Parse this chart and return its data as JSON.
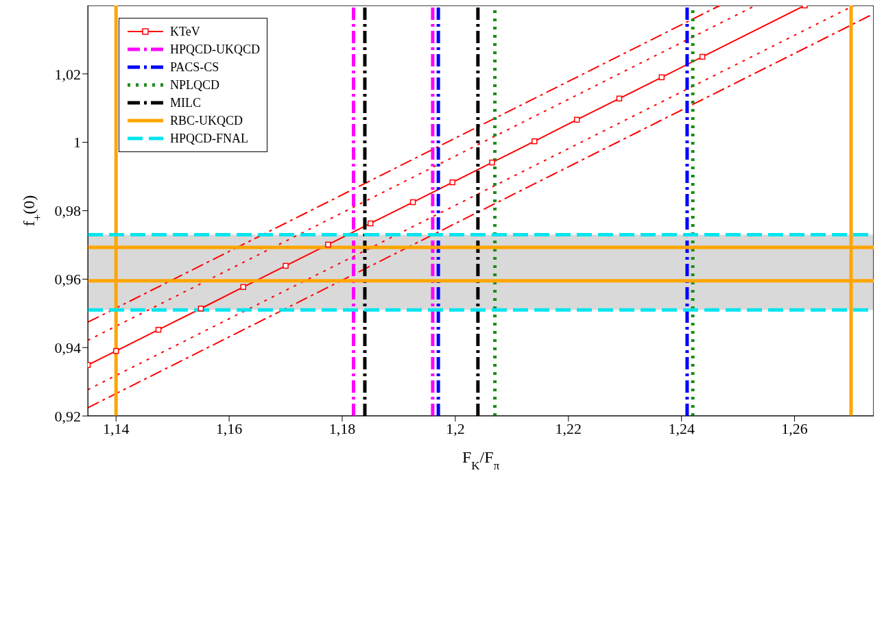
{
  "chart_data": {
    "type": "line",
    "xlabel": "F$_{K}$/F$_{π}$",
    "ylabel": "f$_{+}$(0)",
    "xlim": [
      1.135,
      1.274
    ],
    "ylim": [
      0.92,
      1.04
    ],
    "xticks": [
      {
        "value": 1.14,
        "label": "1,14"
      },
      {
        "value": 1.16,
        "label": "1,16"
      },
      {
        "value": 1.18,
        "label": "1,18"
      },
      {
        "value": 1.2,
        "label": "1,2"
      },
      {
        "value": 1.22,
        "label": "1,22"
      },
      {
        "value": 1.24,
        "label": "1,24"
      },
      {
        "value": 1.26,
        "label": "1,26"
      }
    ],
    "yticks": [
      {
        "value": 0.92,
        "label": "0,92"
      },
      {
        "value": 0.94,
        "label": "0,94"
      },
      {
        "value": 0.96,
        "label": "0,96"
      },
      {
        "value": 0.98,
        "label": "0,98"
      },
      1,
      {
        "value": 1.02,
        "label": "1,02"
      }
    ],
    "legend": "top left",
    "bands": [
      {
        "axis": "y",
        "from": 0.951,
        "to": 0.973,
        "color": "#d9d9d9"
      }
    ],
    "series": [
      {
        "name": "KTeV",
        "color": "#ff0000",
        "line_style": "solid",
        "marker": "square",
        "x": [
          1.135,
          1.14,
          1.1475,
          1.155,
          1.1625,
          1.17,
          1.1775,
          1.185,
          1.1925,
          1.1995,
          1.2065,
          1.214,
          1.2215,
          1.229,
          1.2365,
          1.2437,
          1.2618
        ],
        "values": [
          0.9349,
          0.939,
          0.9452,
          0.9514,
          0.9577,
          0.9639,
          0.9701,
          0.9763,
          0.9825,
          0.9883,
          0.9941,
          1.0003,
          1.0066,
          1.0128,
          1.019,
          1.025,
          1.04
        ]
      },
      {
        "color": "#ff0000",
        "line_style": "dotted",
        "x": [
          1.135,
          1.2531
        ],
        "values": [
          0.9421,
          1.04
        ]
      },
      {
        "color": "#ff0000",
        "line_style": "dotted",
        "x": [
          1.135,
          1.2705
        ],
        "values": [
          0.9277,
          1.04
        ]
      },
      {
        "color": "#ff0000",
        "line_style": "dashdot",
        "x": [
          1.135,
          1.2468
        ],
        "values": [
          0.9474,
          1.04
        ]
      },
      {
        "color": "#ff0000",
        "line_style": "dashdot",
        "x": [
          1.135,
          1.274
        ],
        "values": [
          0.9224,
          1.0376
        ]
      },
      {
        "name": "HPQCD-UKQCD",
        "color": "#ff00ff",
        "line_style": "dashdot",
        "x": [
          1.182,
          1.182
        ],
        "values": [
          0.92,
          1.04
        ]
      },
      {
        "color": "#ff00ff",
        "line_style": "dashdot",
        "x": [
          1.196,
          1.196
        ],
        "values": [
          0.92,
          1.04
        ]
      },
      {
        "name": "PACS-CS",
        "color": "#0000ff",
        "line_style": "dashdot",
        "x": [
          1.197,
          1.197
        ],
        "values": [
          0.92,
          1.04
        ]
      },
      {
        "color": "#0000ff",
        "line_style": "dashdot",
        "x": [
          1.241,
          1.241
        ],
        "values": [
          0.92,
          1.04
        ]
      },
      {
        "name": "NPLQCD",
        "color": "#1a8c1a",
        "line_style": "dotted",
        "x": [
          1.207,
          1.207
        ],
        "values": [
          0.92,
          1.04
        ]
      },
      {
        "color": "#1a8c1a",
        "line_style": "dotted",
        "x": [
          1.242,
          1.242
        ],
        "values": [
          0.92,
          1.04
        ]
      },
      {
        "name": "MILC",
        "color": "#000000",
        "line_style": "dashdot",
        "x": [
          1.184,
          1.184
        ],
        "values": [
          0.92,
          1.04
        ]
      },
      {
        "color": "#000000",
        "line_style": "dashdot",
        "x": [
          1.204,
          1.204
        ],
        "values": [
          0.92,
          1.04
        ]
      },
      {
        "name": "RBC-UKQCD",
        "color": "#ffa500",
        "line_style": "solid",
        "x": [
          1.14,
          1.14
        ],
        "values": [
          0.92,
          1.04
        ]
      },
      {
        "color": "#ffa500",
        "line_style": "solid",
        "x": [
          1.27,
          1.27
        ],
        "values": [
          0.92,
          1.04
        ]
      },
      {
        "color": "#ffa500",
        "line_style": "solid",
        "x": [
          1.135,
          1.274
        ],
        "values": [
          0.9595,
          0.9595
        ]
      },
      {
        "color": "#ffa500",
        "line_style": "solid",
        "x": [
          1.135,
          1.274
        ],
        "values": [
          0.9693,
          0.9693
        ]
      },
      {
        "name": "HPQCD-FNAL",
        "color": "#00e5ee",
        "line_style": "dashed",
        "x": [
          1.135,
          1.274
        ],
        "values": [
          0.951,
          0.951
        ]
      },
      {
        "color": "#00e5ee",
        "line_style": "dashed",
        "x": [
          1.135,
          1.274
        ],
        "values": [
          0.973,
          0.973
        ]
      }
    ]
  }
}
